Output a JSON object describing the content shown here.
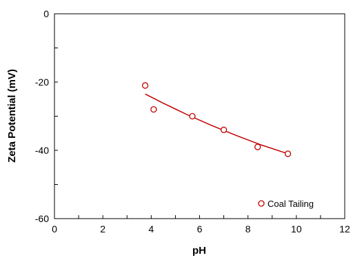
{
  "chart_data": {
    "type": "scatter",
    "title": "",
    "xlabel": "pH",
    "ylabel": "Zeta Potential (mV)",
    "xlim": [
      0,
      12
    ],
    "ylim": [
      -60,
      0
    ],
    "xticks": [
      0,
      2,
      4,
      6,
      8,
      10,
      12
    ],
    "yticks": [
      0,
      -20,
      -40,
      -60
    ],
    "grid": false,
    "legend_position": "bottom-right",
    "series": [
      {
        "name": "Coal Tailing",
        "marker": "open-circle",
        "color": "#c00000",
        "x": [
          3.75,
          4.1,
          5.7,
          7.0,
          8.4,
          9.65
        ],
        "y": [
          -21,
          -28,
          -30,
          -34,
          -39,
          -41
        ]
      }
    ],
    "trendline": {
      "color": "#c00000",
      "x": [
        3.75,
        4.5,
        5.5,
        6.5,
        7.5,
        8.5,
        9.65
      ],
      "y": [
        -23.5,
        -26.2,
        -29.6,
        -32.7,
        -35.6,
        -38.3,
        -41
      ]
    }
  }
}
